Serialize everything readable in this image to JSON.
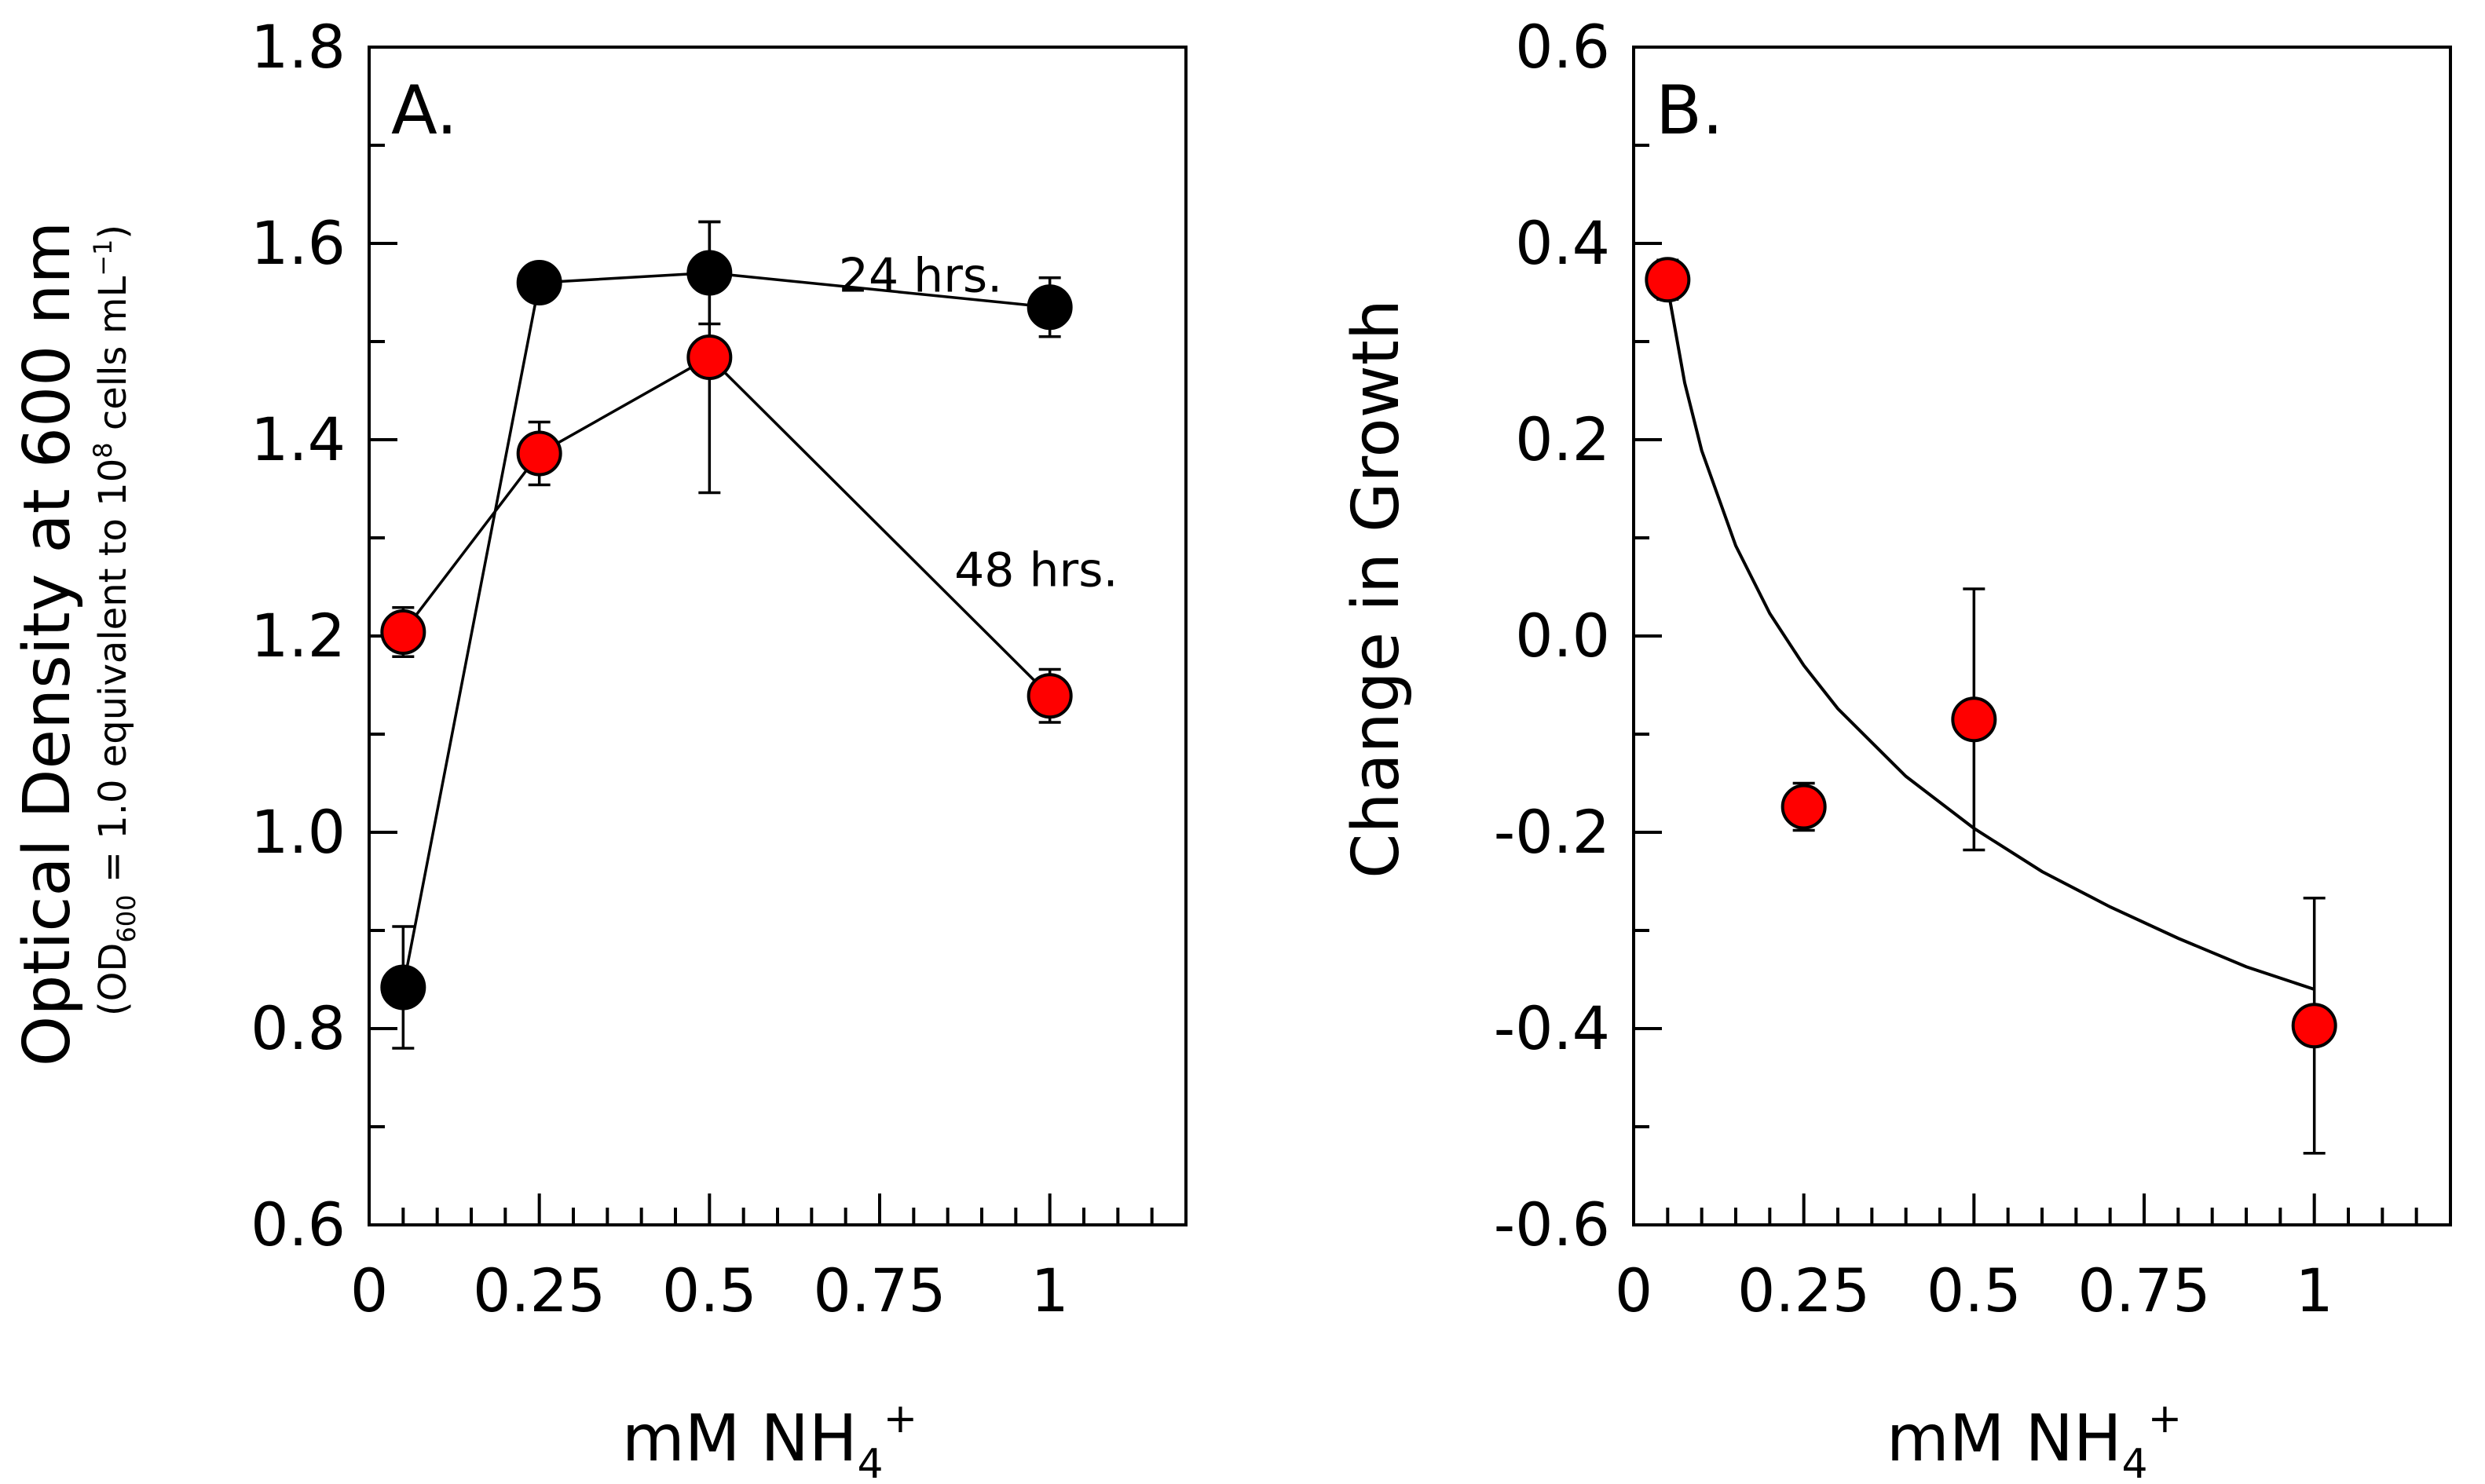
{
  "chart_data": [
    {
      "type": "line",
      "panel_label": "A.",
      "xlabel": {
        "main": "mM NH",
        "sub": "4",
        "sup": "+"
      },
      "ylabel": {
        "main": "Optical Density at 600 nm",
        "sub_pre": "(OD",
        "sub_sub": "600",
        "sub_mid": " = 1.0 equivalent to 10",
        "sub_sup": "8",
        "sub_end": " cells mL",
        "sub_sup2": "−1",
        "sub_close": ")"
      },
      "xlim": [
        0,
        1.2
      ],
      "ylim": [
        0.6,
        1.8
      ],
      "x_ticks": [
        0,
        0.25,
        0.5,
        0.75,
        1
      ],
      "x_tick_labels": [
        "0",
        "0.25",
        "0.5",
        "0.75",
        "1"
      ],
      "y_ticks": [
        0.6,
        0.8,
        1.0,
        1.2,
        1.4,
        1.6,
        1.8
      ],
      "y_tick_labels": [
        "0.6",
        "0.8",
        "1.0",
        "1.2",
        "1.4",
        "1.6",
        "1.8"
      ],
      "series": [
        {
          "name": "24 hrs.",
          "color": "#000000",
          "x": [
            0.05,
            0.25,
            0.5,
            1.0
          ],
          "y": [
            0.842,
            1.56,
            1.57,
            1.535
          ],
          "err": [
            0.062,
            0.0,
            0.052,
            0.03
          ],
          "label_at": [
            0.81,
            1.57
          ]
        },
        {
          "name": "48 hrs.",
          "color": "#ff0000",
          "x": [
            0.05,
            0.25,
            0.5,
            1.0
          ],
          "y": [
            1.204,
            1.386,
            1.484,
            1.139
          ],
          "err": [
            0.025,
            0.032,
            0.138,
            0.027
          ],
          "label_at": [
            0.98,
            1.27
          ]
        }
      ]
    },
    {
      "type": "scatter",
      "panel_label": "B.",
      "xlabel": {
        "main": "mM NH",
        "sub": "4",
        "sup": "+"
      },
      "ylabel": {
        "main": "Change in Growth"
      },
      "xlim": [
        0,
        1.2
      ],
      "ylim": [
        -0.6,
        0.6
      ],
      "x_ticks": [
        0,
        0.25,
        0.5,
        0.75,
        1
      ],
      "x_tick_labels": [
        "0",
        "0.25",
        "0.5",
        "0.75",
        "1"
      ],
      "y_ticks": [
        -0.6,
        -0.4,
        -0.2,
        0.0,
        0.2,
        0.4,
        0.6
      ],
      "y_tick_labels": [
        "-0.6",
        "-0.4",
        "-0.2",
        "0.0",
        "0.2",
        "0.4",
        "0.6"
      ],
      "series": [
        {
          "color": "#ff0000",
          "x": [
            0.05,
            0.25,
            0.5,
            1.0
          ],
          "y": [
            0.363,
            -0.174,
            -0.085,
            -0.397
          ],
          "err": [
            0.02,
            0.024,
            0.133,
            0.13
          ]
        }
      ],
      "fit": {
        "kind": "logarithmic",
        "x": [
          0.05,
          0.075,
          0.1,
          0.15,
          0.2,
          0.25,
          0.3,
          0.4,
          0.5,
          0.6,
          0.7,
          0.8,
          0.9,
          1.0
        ],
        "y": [
          0.355,
          0.258,
          0.189,
          0.092,
          0.023,
          -0.03,
          -0.074,
          -0.143,
          -0.196,
          -0.24,
          -0.276,
          -0.308,
          -0.337,
          -0.36
        ]
      }
    }
  ]
}
